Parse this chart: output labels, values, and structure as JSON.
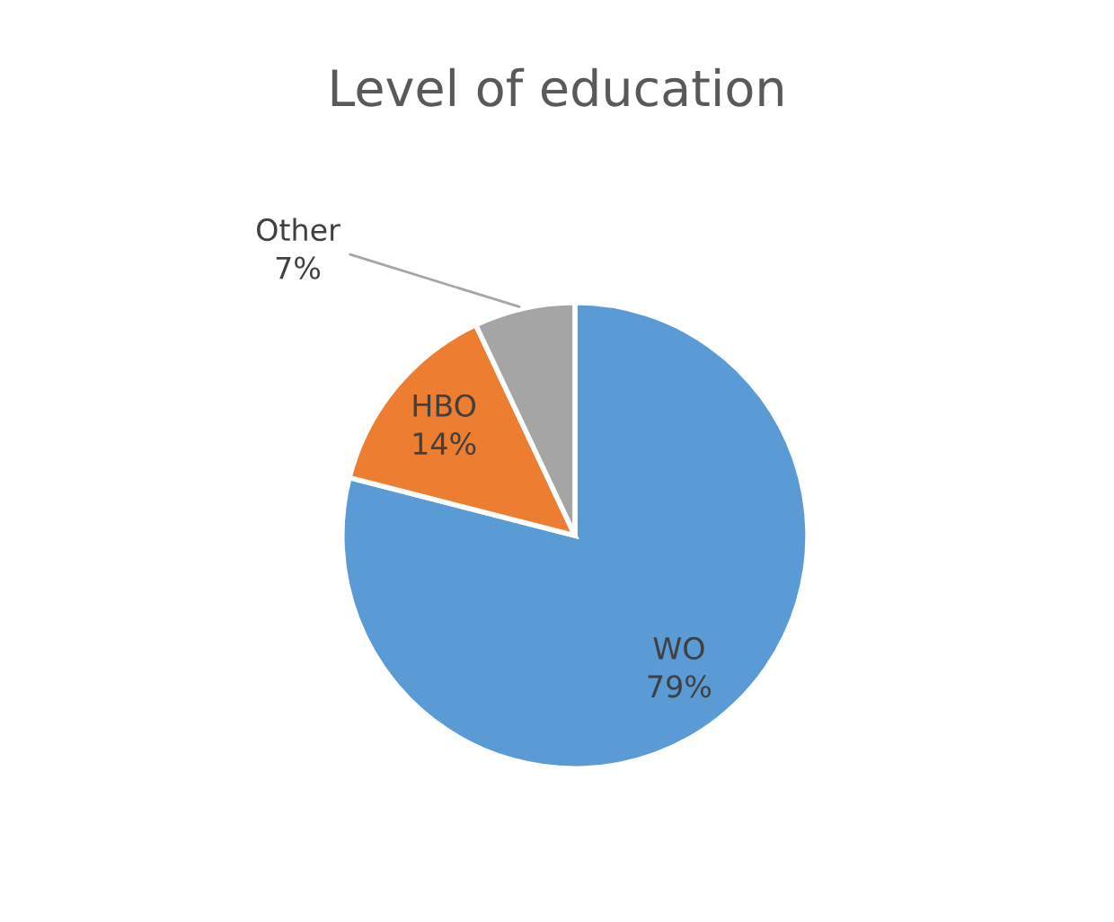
{
  "chart_data": {
    "type": "pie",
    "title": "Level of education",
    "categories": [
      "WO",
      "HBO",
      "Other"
    ],
    "values": [
      79,
      14,
      7
    ],
    "value_labels": [
      "79%",
      "14%",
      "7%"
    ],
    "colors": [
      "#5b9bd5",
      "#ed7d31",
      "#a5a5a5"
    ],
    "legend": false
  }
}
